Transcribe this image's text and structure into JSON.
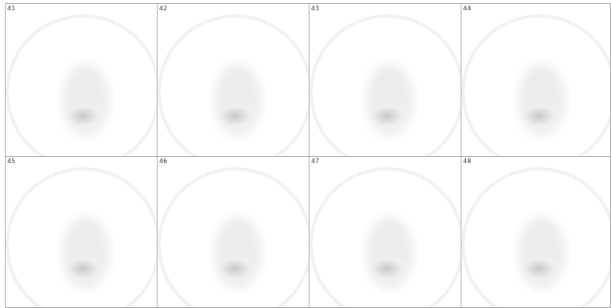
{
  "tiles": [
    {
      "label": "41"
    },
    {
      "label": "42"
    },
    {
      "label": "43"
    },
    {
      "label": "44"
    },
    {
      "label": "45"
    },
    {
      "label": "46"
    },
    {
      "label": "47"
    },
    {
      "label": "48"
    }
  ]
}
